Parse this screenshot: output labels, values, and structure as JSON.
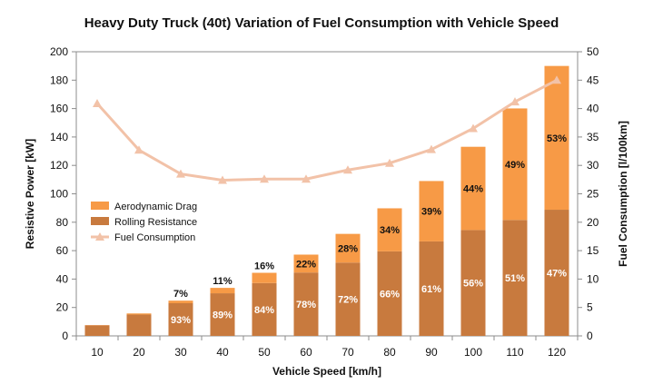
{
  "chart_data": {
    "type": "bar",
    "title": "Heavy Duty Truck (40t) Variation of Fuel Consumption with Vehicle Speed",
    "xlabel": "Vehicle Speed [km/h]",
    "ylabel": "Resistive Power [kW]",
    "y2label": "Fuel Consumption [l/100km]",
    "ylim": [
      0,
      200
    ],
    "y2lim": [
      0,
      50
    ],
    "yticks": [
      0,
      20,
      40,
      60,
      80,
      100,
      120,
      140,
      160,
      180,
      200
    ],
    "y2ticks": [
      0,
      5,
      10,
      15,
      20,
      25,
      30,
      35,
      40,
      45,
      50
    ],
    "categories": [
      "10",
      "20",
      "30",
      "40",
      "50",
      "60",
      "70",
      "80",
      "90",
      "100",
      "110",
      "120"
    ],
    "legend_position": "left",
    "series": [
      {
        "name": "Aerodynamic Drag",
        "kind": "stacked-bar",
        "color": "#F79A46",
        "values": [
          0.2,
          0.8,
          1.8,
          3.8,
          7.2,
          12.6,
          20.2,
          30.3,
          42.5,
          58.6,
          78.5,
          101.2
        ],
        "labels": [
          "",
          "",
          "7%",
          "11%",
          "16%",
          "22%",
          "28%",
          "34%",
          "39%",
          "44%",
          "49%",
          "53%"
        ]
      },
      {
        "name": "Rolling Resistance",
        "kind": "stacked-bar",
        "color": "#C87A3E",
        "values": [
          7.4,
          15.0,
          23.0,
          30.0,
          37.2,
          44.6,
          51.6,
          59.5,
          66.5,
          74.5,
          81.6,
          88.8
        ],
        "labels": [
          "",
          "",
          "93%",
          "89%",
          "84%",
          "78%",
          "72%",
          "66%",
          "61%",
          "56%",
          "51%",
          "47%"
        ]
      },
      {
        "name": "Fuel Consumption",
        "kind": "line",
        "axis": "right",
        "color": "#F2C2A8",
        "values": [
          40.9,
          32.7,
          28.5,
          27.4,
          27.6,
          27.6,
          29.2,
          30.4,
          32.8,
          36.5,
          41.2,
          45.0
        ]
      }
    ]
  }
}
